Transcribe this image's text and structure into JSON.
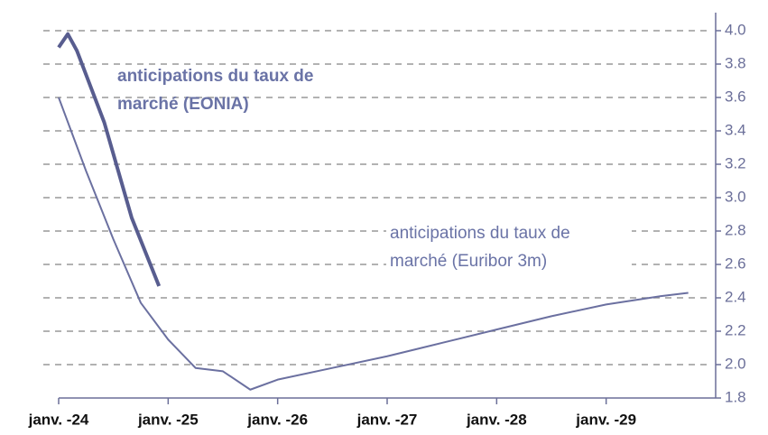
{
  "chart_data": {
    "type": "line",
    "annotations": [
      {
        "lines": [
          "anticipations du taux de",
          "marché (EONIA)"
        ],
        "bold": true
      },
      {
        "lines": [
          "anticipations du taux de",
          "marché (Euribor 3m)"
        ],
        "bold": false
      }
    ],
    "series": [
      {
        "name": "EONIA",
        "color": "#585d8f",
        "width": 4,
        "x": [
          "2024-01",
          "2024-02",
          "2024-03",
          "2024-06",
          "2024-09",
          "2024-12"
        ],
        "values": [
          3.9,
          3.98,
          3.88,
          3.45,
          2.88,
          2.47
        ]
      },
      {
        "name": "Euribor 3m",
        "color": "#6b70a0",
        "width": 2,
        "x": [
          "2024-01",
          "2024-04",
          "2024-07",
          "2024-10",
          "2025-01",
          "2025-04",
          "2025-07",
          "2025-10",
          "2026-01",
          "2026-07",
          "2027-01",
          "2027-04",
          "2027-07",
          "2028-01",
          "2028-07",
          "2029-01",
          "2029-07",
          "2029-10"
        ],
        "values": [
          3.6,
          3.16,
          2.75,
          2.37,
          2.15,
          1.98,
          1.96,
          1.85,
          1.91,
          1.98,
          2.05,
          2.09,
          2.13,
          2.21,
          2.29,
          2.36,
          2.41,
          2.43
        ]
      }
    ],
    "xlim": [
      "2024-01",
      "2030-01"
    ],
    "xticks": [
      {
        "value": "2024-01",
        "label": "janv. -24"
      },
      {
        "value": "2025-01",
        "label": "janv. -25"
      },
      {
        "value": "2026-01",
        "label": "janv. -26"
      },
      {
        "value": "2027-01",
        "label": "janv. -27"
      },
      {
        "value": "2028-01",
        "label": "janv. -28"
      },
      {
        "value": "2029-01",
        "label": "janv. -29"
      }
    ],
    "ylim": [
      1.8,
      4.0
    ],
    "yticks": [
      {
        "value": 1.8,
        "label": "1.8"
      },
      {
        "value": 2.0,
        "label": "2.0"
      },
      2.2,
      2.4,
      2.6,
      2.8,
      {
        "value": 3.0,
        "label": "3.0"
      },
      3.2,
      3.4,
      3.6,
      3.8,
      {
        "value": 4.0,
        "label": "4.0"
      }
    ],
    "grid": true,
    "axis_color": "#6b6f99"
  }
}
